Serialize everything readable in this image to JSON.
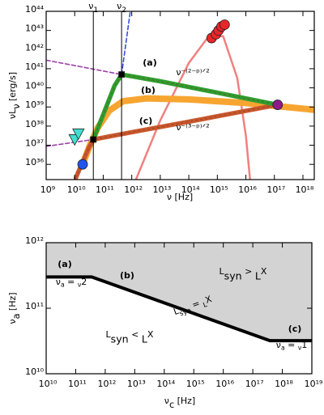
{
  "chart_data": [
    {
      "type": "line",
      "log_x": true,
      "log_y": true,
      "xlabel": "ν [Hz]",
      "ylabel": [
        "νL",
        "ν",
        " [erg/s]"
      ],
      "xlim": [
        1000000000.0,
        2.5e+18
      ],
      "ylim": [
        1.6e+35,
        1e+44
      ],
      "xticks": [
        {
          "value": 1000000000.0,
          "label": "10⁹"
        },
        {
          "value": 10000000000.0,
          "label": "10¹⁰"
        },
        {
          "value": 100000000000.0,
          "label": "10¹¹"
        },
        {
          "value": 1000000000000.0,
          "label": "10¹²"
        },
        {
          "value": 10000000000000.0,
          "label": "10¹³"
        },
        {
          "value": 100000000000000.0,
          "label": "10¹⁴"
        },
        {
          "value": 1000000000000000.0,
          "label": "10¹⁵"
        },
        {
          "value": 1e+16,
          "label": "10¹⁶"
        },
        {
          "value": 1e+17,
          "label": "10¹⁷"
        },
        {
          "value": 1e+18,
          "label": "10¹⁸"
        }
      ],
      "yticks": [
        {
          "value": 1e+36,
          "label": "10³⁶"
        },
        {
          "value": 1e+37,
          "label": "10³⁷"
        },
        {
          "value": 1e+38,
          "label": "10³⁸"
        },
        {
          "value": 1e+39,
          "label": "10³⁹"
        },
        {
          "value": 1e+40,
          "label": "10⁴⁰"
        },
        {
          "value": 1e+41,
          "label": "10⁴¹"
        },
        {
          "value": 1e+42,
          "label": "10⁴²"
        },
        {
          "value": 1e+43,
          "label": "10⁴³"
        },
        {
          "value": 1e+44,
          "label": "10⁴⁴"
        }
      ],
      "vlines": [
        {
          "x": 45000000000.0,
          "label": [
            "ν",
            "1"
          ]
        },
        {
          "x": 440000000000.0,
          "label": [
            "ν",
            "2"
          ]
        }
      ],
      "series": [
        {
          "color": "#f08080",
          "x": [
            1400000000000.0,
            10000000000000.0,
            100000000000000.0,
            500000000000000.0,
            1600000000000000.0,
            5000000000000000.0,
            1e+16,
            1.4e+16
          ],
          "y": [
            1.6e+35,
            2e+38,
            2e+41,
            5e+42,
            5e+42,
            3.2e+40,
            3.2e+37,
            1.6e+35
          ]
        },
        {
          "name": "(b)",
          "color": "#f7a531",
          "x": [
            19000000000.0,
            32000000000.0,
            63000000000.0,
            160000000000.0,
            500000000000.0,
            3200000000000.0,
            100000000000000.0,
            1e+16,
            1.3e+17,
            2.5e+18
          ],
          "y": [
            1e+36,
            7.9e+36,
            7.9e+37,
            6.3e+38,
            2e+39,
            2.8e+39,
            2.5e+39,
            1.6e+39,
            1.1e+39,
            7.1e+38
          ]
        },
        {
          "name": "(c)",
          "color": "#c9572c",
          "x": [
            11000000000.0,
            20000000000.0,
            32000000000.0,
            45000000000.0,
            1000000000000.0,
            100000000000000.0,
            1.3e+17
          ],
          "y": [
            2e+35,
            1.6e+36,
            7.9e+36,
            2e+37,
            4.8e+37,
            1.7e+38,
            1.3e+39
          ]
        },
        {
          "name": "(a)",
          "color": "#2e9e2e",
          "x": [
            45000000000.0,
            100000000000.0,
            250000000000.0,
            440000000000.0,
            10000000000000.0,
            1000000000000000.0,
            1.3e+17
          ],
          "y": [
            2e+37,
            4e+38,
            1.3e+40,
            5e+40,
            2.2e+40,
            5.6e+39,
            1.3e+39
          ]
        },
        {
          "color": "#9b40a8",
          "dash": true,
          "x": [
            1000000000.0,
            440000000000.0
          ],
          "y": [
            2.8e+41,
            5e+40
          ]
        },
        {
          "color": "#9b40a8",
          "dash": true,
          "x": [
            1000000000.0,
            45000000000.0
          ],
          "y": [
            8.7e+36,
            2e+37
          ]
        },
        {
          "color": "#3b4fd8",
          "dash": true,
          "x": [
            440000000000.0,
            890000000000.0
          ],
          "y": [
            5e+40,
            1e+44
          ]
        },
        {
          "color": "#e8262a",
          "marker": "circle",
          "x": [
            630000000000000.0,
            890000000000000.0,
            1100000000000000.0,
            1400000000000000.0,
            1800000000000000.0
          ],
          "y": [
            4e+42,
            6.3e+42,
            1e+43,
            1.6e+43,
            2e+43
          ]
        },
        {
          "color": "#40e0d0",
          "marker": "triangle",
          "x": [
            10000000000.0,
            13500000000.0
          ],
          "y": [
            2e+37,
            4e+37
          ]
        },
        {
          "color": "#2255ee",
          "marker": "circle",
          "x": [
            19000000000.0
          ],
          "y": [
            1e+36
          ]
        },
        {
          "color": "#8b1a8b",
          "marker": "circle",
          "x": [
            1.3e+17
          ],
          "y": [
            1.3e+39
          ]
        },
        {
          "color": "#000000",
          "marker": "square",
          "x": [
            45000000000.0,
            440000000000.0
          ],
          "y": [
            2e+37,
            5e+40
          ]
        }
      ],
      "annotations": [
        {
          "label": "ν⁻⁽²⁻ᵖ⁾ᐟ²"
        },
        {
          "label": "ν⁻⁽³⁻ᵖ⁾ᐟ²"
        }
      ]
    },
    {
      "type": "line",
      "log_x": true,
      "log_y": true,
      "xlabel": [
        "ν",
        "c",
        " [Hz]"
      ],
      "ylabel": [
        "ν",
        "a",
        " [Hz]"
      ],
      "xlim": [
        10000000000.0,
        1e+19
      ],
      "ylim": [
        10000000000.0,
        1000000000000.0
      ],
      "xticks": [
        {
          "value": 10000000000.0,
          "label": "10¹⁰"
        },
        {
          "value": 100000000000.0,
          "label": "10¹¹"
        },
        {
          "value": 1000000000000.0,
          "label": "10¹²"
        },
        {
          "value": 10000000000000.0,
          "label": "10¹³"
        },
        {
          "value": 100000000000000.0,
          "label": "10¹⁴"
        },
        {
          "value": 1000000000000000.0,
          "label": "10¹⁵"
        },
        {
          "value": 1e+16,
          "label": "10¹⁶"
        },
        {
          "value": 1e+17,
          "label": "10¹⁷"
        },
        {
          "value": 1e+18,
          "label": "10¹⁸"
        },
        {
          "value": 1e+19,
          "label": "10¹⁹"
        }
      ],
      "yticks": [
        {
          "value": 10000000000.0,
          "label": "10¹⁰"
        },
        {
          "value": 100000000000.0,
          "label": "10¹¹"
        },
        {
          "value": 1000000000000.0,
          "label": "10¹²"
        }
      ],
      "series": [
        {
          "color": "#000000",
          "fill_above": "#d3d3d3",
          "x": [
            10000000000.0,
            350000000000.0,
            3.8e+17,
            1e+19
          ],
          "y": [
            300000000000.0,
            300000000000.0,
            32000000000.0,
            32000000000.0
          ]
        }
      ],
      "annotations": [
        {
          "label": "(a)"
        },
        {
          "label": [
            "ν",
            "a",
            " = ",
            "ν",
            "2"
          ]
        },
        {
          "label": "(b)"
        },
        {
          "label": "(c)"
        },
        {
          "label": [
            "ν",
            "a",
            " = ",
            "ν",
            "1"
          ]
        },
        {
          "label": [
            "L",
            "syn",
            " > ",
            "L",
            "X"
          ]
        },
        {
          "label": [
            "L",
            "syn",
            " = ",
            "L",
            "X"
          ]
        },
        {
          "label": [
            "L",
            "syn",
            " < ",
            "L",
            "X"
          ]
        }
      ]
    }
  ]
}
